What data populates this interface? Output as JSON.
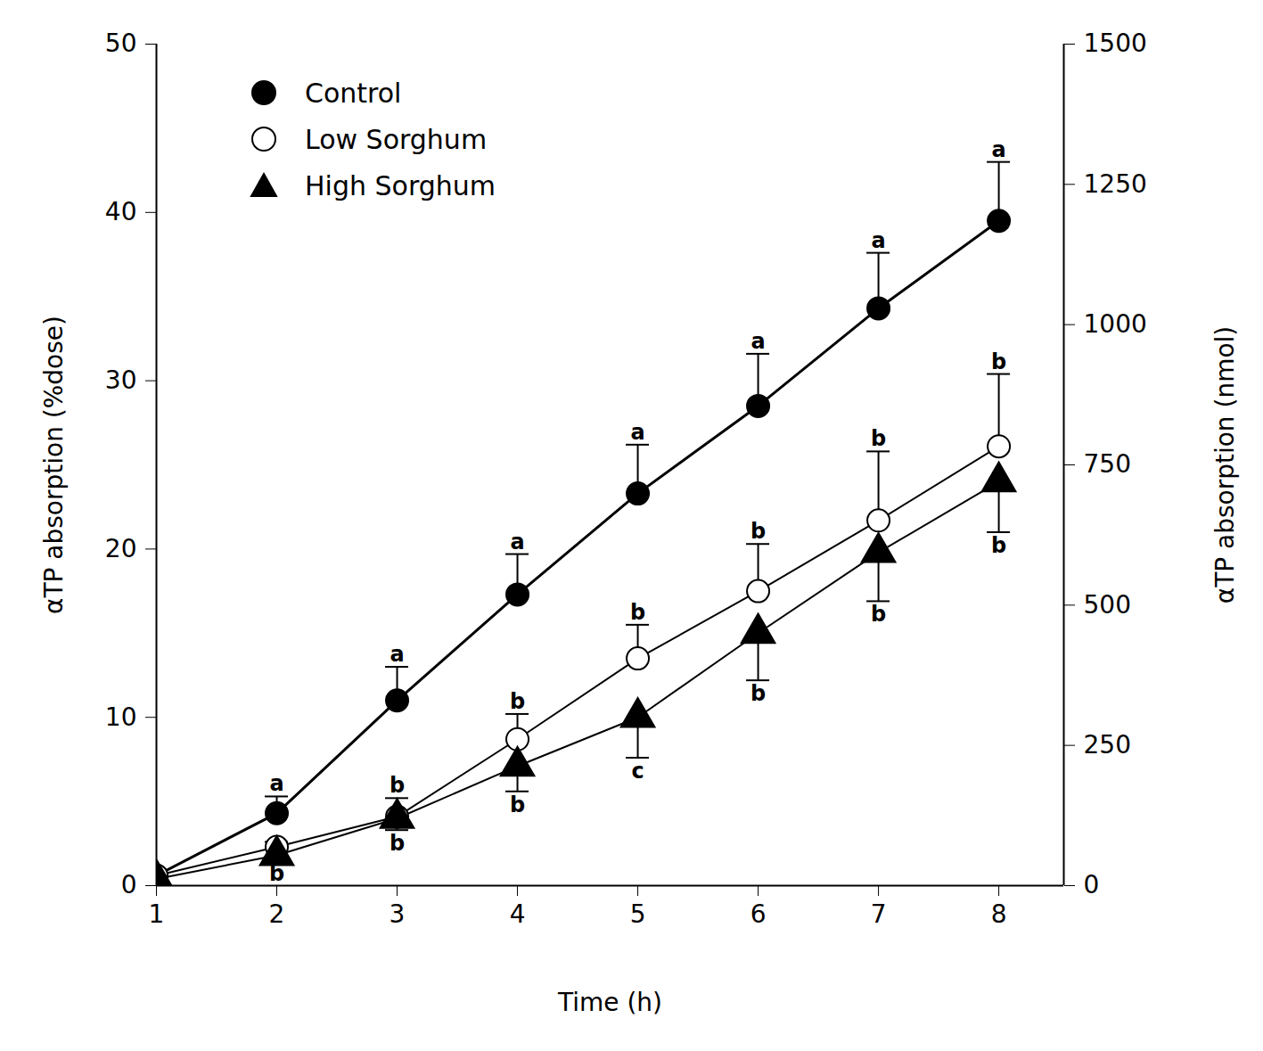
{
  "chart_data": {
    "type": "line",
    "x_label": "Time (h)",
    "y_label": "αTP absorption (%dose)",
    "y2_label": "αTP absorption (nmol)",
    "x": [
      1,
      2,
      3,
      4,
      5,
      6,
      7,
      8
    ],
    "xlim": [
      1,
      8.54
    ],
    "xticks": [
      1,
      2,
      3,
      4,
      5,
      6,
      7,
      8
    ],
    "ylim": [
      0,
      50
    ],
    "yticks": [
      0,
      10,
      20,
      30,
      40,
      50
    ],
    "y2lim": [
      0,
      1500
    ],
    "y2ticks": [
      0,
      250,
      500,
      750,
      1000,
      1250,
      1500
    ],
    "legend": "upper left",
    "series": [
      {
        "name": "Control",
        "color": "#000000",
        "marker": "circle",
        "values": [
          0.6,
          4.3,
          11.0,
          17.3,
          23.3,
          28.5,
          34.3,
          39.5
        ],
        "error_upper": [
          null,
          1.0,
          2.0,
          2.4,
          2.9,
          3.1,
          3.3,
          3.5
        ],
        "letters": [
          null,
          "a",
          "a",
          "a",
          "a",
          "a",
          "a",
          "a"
        ]
      },
      {
        "name": "Low Sorghum",
        "color": "#000000",
        "marker": "open_circle",
        "values": [
          0.6,
          2.3,
          4.1,
          8.7,
          13.5,
          17.5,
          21.7,
          26.1
        ],
        "error_upper": [
          null,
          0.3,
          1.1,
          1.5,
          2.0,
          2.8,
          4.1,
          4.3
        ],
        "letters": [
          null,
          null,
          "b",
          "b",
          "b",
          "b",
          "b",
          "b"
        ]
      },
      {
        "name": "High Sorghum",
        "color": "#000000",
        "marker": "triangle",
        "values": [
          0.4,
          1.8,
          4.0,
          7.1,
          10.0,
          15.0,
          19.8,
          24.0
        ],
        "error_lower": [
          null,
          0.3,
          0.7,
          1.5,
          2.4,
          2.8,
          2.9,
          3.0
        ],
        "letters": [
          null,
          "b",
          "b",
          "b",
          "c",
          "b",
          "b",
          "b"
        ]
      }
    ]
  }
}
